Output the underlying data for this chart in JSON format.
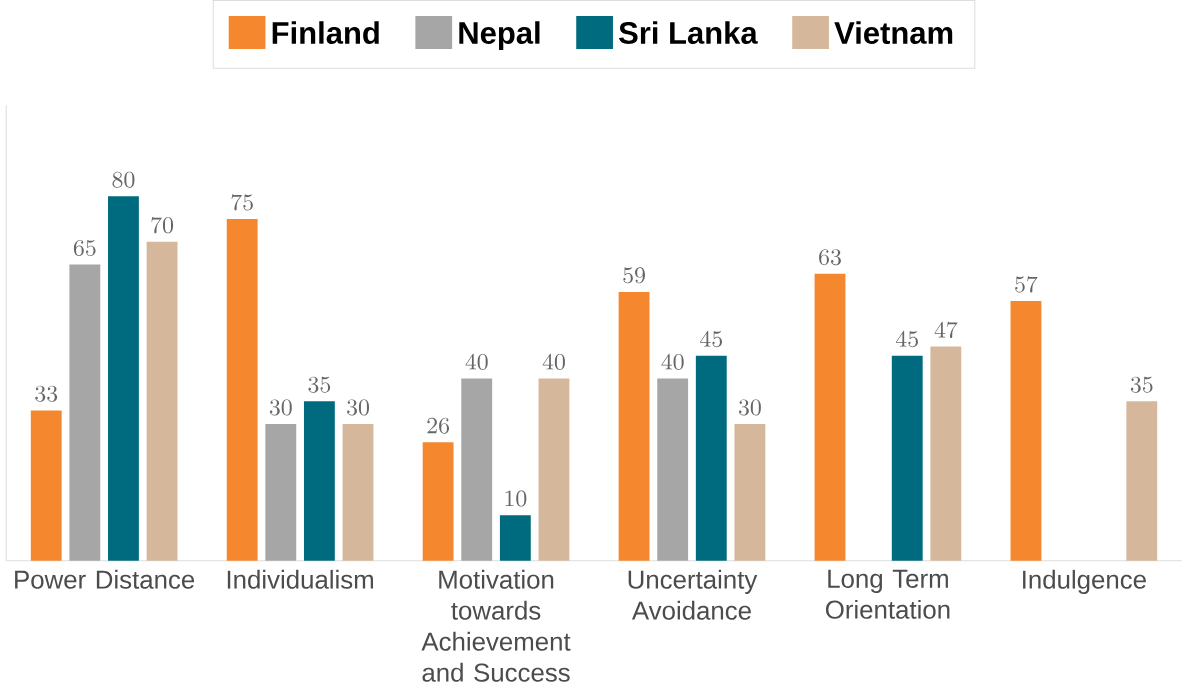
{
  "chart_data": {
    "type": "bar",
    "categories": [
      "Power Distance",
      "Individualism",
      "Motivation towards Achievement and Success",
      "Uncertainty Avoidance",
      "Long Term Orientation",
      "Indulgence"
    ],
    "series": [
      {
        "name": "Finland",
        "color": "#f5872f",
        "values": [
          33,
          75,
          26,
          59,
          63,
          57
        ]
      },
      {
        "name": "Nepal",
        "color": "#a6a6a6",
        "values": [
          65,
          30,
          40,
          40,
          null,
          null
        ]
      },
      {
        "name": "Sri Lanka",
        "color": "#006b7f",
        "values": [
          80,
          35,
          10,
          45,
          45,
          null
        ]
      },
      {
        "name": "Vietnam",
        "color": "#d5b89b",
        "values": [
          70,
          30,
          40,
          30,
          47,
          35
        ]
      }
    ],
    "ylim": [
      0,
      100
    ],
    "data_labels": true,
    "legend": "top",
    "grid": false
  }
}
